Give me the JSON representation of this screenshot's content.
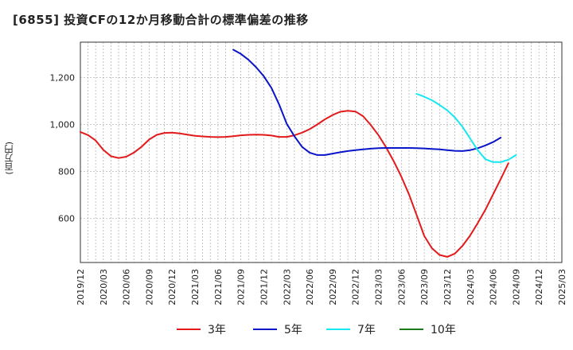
{
  "title": "[6855]  投資CFの12か月移動合計の標準偏差の推移",
  "y_unit_label": "(百万円)",
  "colors": {
    "3年": "#e31a1c",
    "5年": "#0a14c8",
    "7年": "#16e8f0",
    "10年": "#1b7a1b"
  },
  "chart_data": {
    "type": "line",
    "title": "[6855]  投資CFの12か月移動合計の標準偏差の推移",
    "xlabel": "",
    "ylabel": "(百万円)",
    "x_ticks": [
      "2019/12",
      "2020/03",
      "2020/06",
      "2020/09",
      "2020/12",
      "2021/03",
      "2021/06",
      "2021/09",
      "2021/12",
      "2022/03",
      "2022/06",
      "2022/09",
      "2022/12",
      "2023/03",
      "2023/06",
      "2023/09",
      "2023/12",
      "2024/03",
      "2024/06",
      "2024/09",
      "2024/12",
      "2025/03"
    ],
    "y_ticks": [
      600,
      800,
      1000,
      1200
    ],
    "y_tick_labels": [
      "600",
      "800",
      "1,000",
      "1,200"
    ],
    "ylim": [
      413,
      1350
    ],
    "xlim": [
      "2019/12",
      "2025/03"
    ],
    "grid": true,
    "legend_position": "bottom",
    "series": [
      {
        "name": "3年",
        "start": "2019/12",
        "values": [
          968,
          955,
          932,
          892,
          865,
          857,
          863,
          880,
          905,
          936,
          956,
          964,
          965,
          962,
          957,
          952,
          949,
          947,
          946,
          947,
          950,
          954,
          956,
          957,
          956,
          953,
          947,
          947,
          954,
          965,
          980,
          1000,
          1022,
          1040,
          1054,
          1058,
          1055,
          1035,
          998,
          955,
          903,
          844,
          778,
          703,
          615,
          526,
          474,
          445,
          437,
          451,
          484,
          528,
          581,
          638,
          703,
          768,
          835
        ]
      },
      {
        "name": "5年",
        "start": "2021/08",
        "values": [
          1318,
          1300,
          1275,
          1243,
          1205,
          1155,
          1085,
          1003,
          950,
          905,
          880,
          870,
          870,
          876,
          882,
          887,
          891,
          894,
          897,
          899,
          900,
          900,
          900,
          900,
          899,
          898,
          896,
          894,
          891,
          888,
          887,
          891,
          899,
          911,
          925,
          944
        ]
      },
      {
        "name": "7年",
        "start": "2023/08",
        "values": [
          1130,
          1118,
          1103,
          1083,
          1060,
          1030,
          990,
          940,
          890,
          852,
          840,
          840,
          850,
          870
        ]
      },
      {
        "name": "10年",
        "start": "2025/03",
        "values": []
      }
    ]
  }
}
